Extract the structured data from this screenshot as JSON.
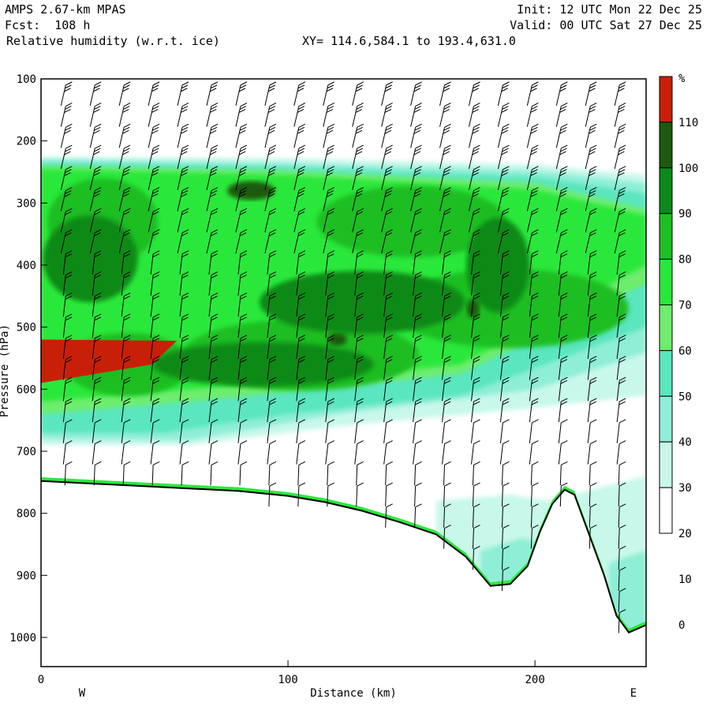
{
  "header": {
    "model": "AMPS 2.67-km MPAS",
    "forecast": "Fcst:  108 h",
    "field": "Relative humidity (w.r.t. ice)",
    "init": "Init: 12 UTC Mon 22 Dec 25",
    "valid": "Valid: 00 UTC Sat 27 Dec 25",
    "section": "XY= 114.6,584.1 to 193.4,631.0"
  },
  "chart_data": {
    "type": "heatmap",
    "xlabel": "Distance (km)",
    "ylabel": "Pressure (hPa)",
    "x_ticks": [
      0,
      100,
      200
    ],
    "y_ticks": [
      100,
      200,
      300,
      400,
      500,
      600,
      700,
      800,
      900,
      1000
    ],
    "xlim": [
      0,
      245
    ],
    "ylim": [
      1055,
      100
    ],
    "left_end_label": "W",
    "right_end_label": "E",
    "colorbar": {
      "unit": "%",
      "labels": [
        110,
        100,
        90,
        80,
        70,
        60,
        50,
        40,
        30,
        20,
        10,
        0
      ],
      "bins": [
        {
          "range": "<30",
          "color": "#ffffff"
        },
        {
          "range": "30-40",
          "color": "#c8f8ea"
        },
        {
          "range": "40-50",
          "color": "#8eeed6"
        },
        {
          "range": "50-60",
          "color": "#5ae6be"
        },
        {
          "range": "60-70",
          "color": "#6eed6e"
        },
        {
          "range": "70-80",
          "color": "#2ae83a"
        },
        {
          "range": "80-90",
          "color": "#1ebe24"
        },
        {
          "range": "90-100",
          "color": "#0c8a18"
        },
        {
          "range": "100-110",
          "color": "#1d5a0e"
        },
        {
          "range": ">110",
          "color": "#c82008"
        }
      ]
    },
    "terrain_profile_hpa": [
      [
        0,
        748
      ],
      [
        20,
        752
      ],
      [
        40,
        756
      ],
      [
        60,
        760
      ],
      [
        80,
        764
      ],
      [
        100,
        772
      ],
      [
        115,
        782
      ],
      [
        130,
        796
      ],
      [
        145,
        814
      ],
      [
        160,
        834
      ],
      [
        172,
        870
      ],
      [
        182,
        917
      ],
      [
        190,
        914
      ],
      [
        197,
        885
      ],
      [
        202,
        830
      ],
      [
        207,
        785
      ],
      [
        212,
        762
      ],
      [
        216,
        770
      ],
      [
        222,
        835
      ],
      [
        228,
        900
      ],
      [
        233,
        965
      ],
      [
        238,
        992
      ],
      [
        245,
        980
      ]
    ]
  }
}
